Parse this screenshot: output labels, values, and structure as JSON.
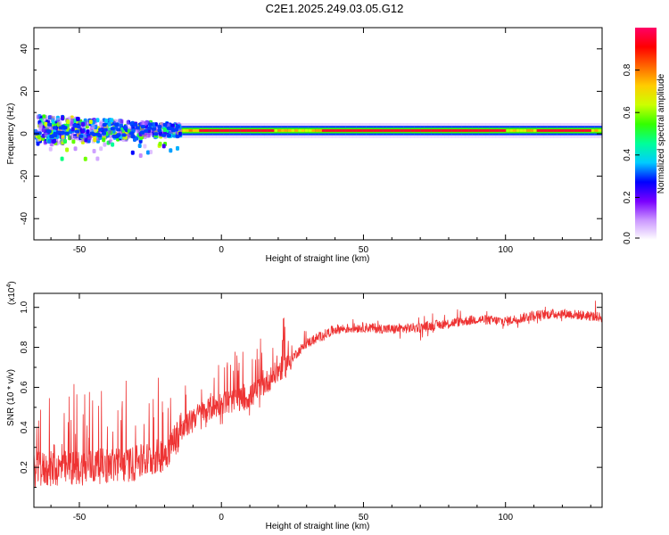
{
  "title": "C2E1.2025.249.03.05.G12",
  "chart_data": [
    {
      "type": "heatmap",
      "name": "spectrogram",
      "xlabel": "Height of straight line (km)",
      "ylabel": "Frequency (Hz)",
      "xlim": [
        -66,
        134
      ],
      "ylim": [
        -50,
        50
      ],
      "xticks": [
        -50,
        0,
        50,
        100
      ],
      "xtick_labels": [
        "-50",
        "0",
        "50",
        "100"
      ],
      "yticks": [
        -40,
        -20,
        0,
        20,
        40
      ],
      "ytick_labels": [
        "-40",
        "-20",
        "0",
        "20",
        "40"
      ],
      "colorbar": {
        "label": "Normalized spectral amplitude",
        "range": [
          0.0,
          1.0
        ],
        "ticks": [
          0.0,
          0.2,
          0.4,
          0.6,
          0.8
        ],
        "tick_labels": [
          "0.0",
          "0.2",
          "0.4",
          "0.6",
          "0.8"
        ],
        "colormap": [
          "#ffffff",
          "#cc99ff",
          "#7a00ff",
          "#0000ff",
          "#00ccff",
          "#00ff99",
          "#33ff00",
          "#ccff00",
          "#ffcc00",
          "#ff6600",
          "#ff0000",
          "#ff0066"
        ]
      },
      "description_series": {
        "center_frequency_hz": 1.5,
        "noisy_region_km": [
          -66,
          -15
        ],
        "noisy_spread_hz": [
          -8,
          8
        ],
        "stable_region_km": [
          -15,
          134
        ],
        "stable_band_width_hz": 2,
        "peak_amplitude_segments_km": [
          [
            -8,
            18
          ],
          [
            35,
            100
          ],
          [
            110,
            130
          ]
        ]
      }
    },
    {
      "type": "line",
      "name": "snr",
      "xlabel": "Height of straight line (km)",
      "ylabel": "SNR (10 * v/v)",
      "y_multiplier_label": "(x10",
      "y_multiplier_exp": "4",
      "xlim": [
        -66,
        134
      ],
      "ylim": [
        0.0,
        1.07
      ],
      "xticks": [
        -50,
        0,
        50,
        100
      ],
      "xtick_labels": [
        "-50",
        "0",
        "50",
        "100"
      ],
      "yticks": [
        0.2,
        0.4,
        0.6,
        0.8,
        1.0
      ],
      "ytick_labels": [
        "0.2",
        "0.4",
        "0.6",
        "0.8",
        "1.0"
      ],
      "color": "#ee3333",
      "trend": {
        "x": [
          -66,
          -50,
          -30,
          -20,
          -15,
          -10,
          0,
          10,
          20,
          30,
          40,
          50,
          60,
          70,
          80,
          90,
          100,
          110,
          120,
          134
        ],
        "y": [
          0.17,
          0.18,
          0.2,
          0.25,
          0.35,
          0.45,
          0.52,
          0.55,
          0.68,
          0.82,
          0.89,
          0.9,
          0.89,
          0.9,
          0.92,
          0.94,
          0.93,
          0.96,
          0.97,
          0.95
        ]
      }
    }
  ]
}
